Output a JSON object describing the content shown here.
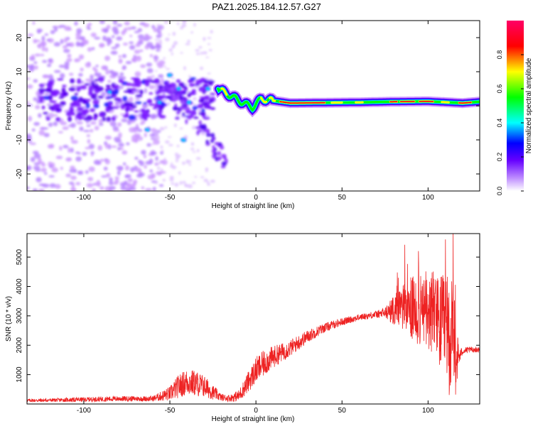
{
  "title": "PAZ1.2025.184.12.57.G27",
  "chart_data": [
    {
      "type": "heatmap",
      "xlabel": "Height of straight line (km)",
      "ylabel": "Frequency (Hz)",
      "xlim": [
        -133,
        130
      ],
      "ylim": [
        -25,
        25
      ],
      "xticks": [
        -100,
        -50,
        0,
        50,
        100
      ],
      "yticks": [
        -20,
        -10,
        0,
        10,
        20
      ],
      "colorbar": {
        "label": "Normalized spectral amplitude",
        "range": [
          0,
          1
        ],
        "ticks": [
          "0.0",
          "0.2",
          "0.4",
          "0.6",
          "0.8"
        ],
        "colors": [
          "#ffffff",
          "#8800ff",
          "#0000ff",
          "#00ffff",
          "#00ff00",
          "#ffff00",
          "#ff0000",
          "#ff0066"
        ]
      },
      "ridge": {
        "description_values_x_km": [
          -22,
          -15,
          -8,
          -2,
          3,
          10,
          20,
          40,
          60,
          80,
          100,
          120,
          130
        ],
        "frequency_hz": [
          5,
          3,
          1,
          -0.5,
          2,
          1.5,
          0.8,
          0.9,
          1.0,
          1.2,
          1.3,
          0.8,
          1.2
        ],
        "amplitude": [
          0.5,
          0.55,
          0.6,
          0.5,
          0.7,
          0.6,
          0.95,
          0.85,
          0.7,
          0.8,
          0.9,
          0.75,
          0.6
        ]
      },
      "grid": false
    },
    {
      "type": "line",
      "xlabel": "Height of straight line (km)",
      "ylabel": "SNR (10 * v/v)",
      "xlim": [
        -133,
        130
      ],
      "ylim": [
        0,
        5800
      ],
      "xticks": [
        -100,
        -50,
        0,
        50,
        100
      ],
      "yticks": [
        1000,
        2000,
        3000,
        4000,
        5000
      ],
      "color": "#ee2222",
      "series": [
        {
          "x": [
            -133,
            -120,
            -100,
            -80,
            -60,
            -50,
            -45,
            -40,
            -35,
            -30,
            -25,
            -20,
            -15,
            -10,
            -5,
            0,
            5,
            10,
            15,
            20,
            25,
            30,
            40,
            50,
            60,
            70,
            75,
            80,
            85,
            90,
            95,
            100,
            105,
            110,
            113,
            115,
            118,
            120,
            125,
            130
          ],
          "values": [
            120,
            130,
            150,
            180,
            180,
            350,
            600,
            750,
            700,
            600,
            400,
            220,
            200,
            280,
            700,
            1150,
            1400,
            1600,
            1750,
            1900,
            2100,
            2300,
            2600,
            2800,
            2950,
            3050,
            3100,
            3200,
            3300,
            3250,
            3150,
            3100,
            2900,
            2600,
            2300,
            1800,
            1600,
            1800,
            1850,
            1850
          ],
          "noise": [
            60,
            60,
            80,
            90,
            90,
            250,
            400,
            450,
            450,
            380,
            250,
            120,
            120,
            200,
            350,
            450,
            450,
            380,
            320,
            280,
            260,
            220,
            160,
            130,
            110,
            120,
            200,
            500,
            800,
            1100,
            1200,
            1300,
            1500,
            1800,
            2200,
            2000,
            300,
            120,
            100,
            100
          ]
        }
      ],
      "grid": false
    }
  ]
}
